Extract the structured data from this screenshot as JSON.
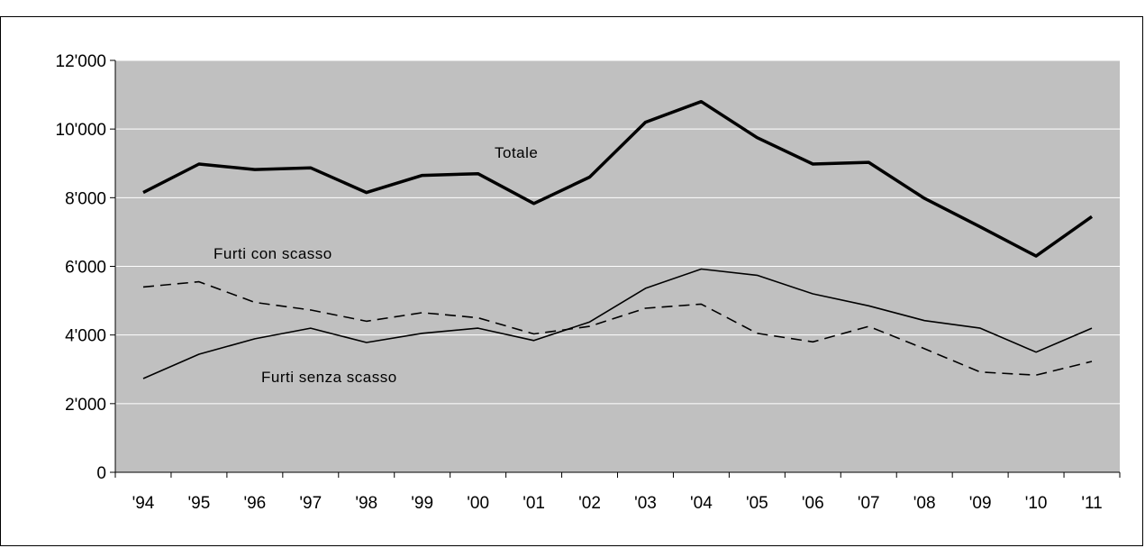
{
  "chart_data": {
    "type": "line",
    "title": "",
    "xlabel": "",
    "ylabel": "",
    "categories": [
      "'94",
      "'95",
      "'96",
      "'97",
      "'98",
      "'99",
      "'00",
      "'01",
      "'02",
      "'03",
      "'04",
      "'05",
      "'06",
      "'07",
      "'08",
      "'09",
      "'10",
      "'11"
    ],
    "ylim": [
      0,
      12000
    ],
    "yticks": [
      0,
      2000,
      4000,
      6000,
      8000,
      10000,
      12000
    ],
    "ytick_labels": [
      "0",
      "2'000",
      "4'000",
      "6'000",
      "8'000",
      "10'000",
      "12'000"
    ],
    "grid": true,
    "plot_background": "#c0c0c0",
    "series": [
      {
        "name": "Totale",
        "style": "thick-solid",
        "color": "#000000",
        "values": [
          8150,
          8980,
          8820,
          8870,
          8150,
          8650,
          8700,
          7830,
          8600,
          10200,
          10800,
          9750,
          8980,
          9030,
          7980,
          7150,
          6300,
          7450
        ]
      },
      {
        "name": "Furti con scasso",
        "style": "dashed",
        "color": "#000000",
        "values": [
          5400,
          5550,
          4950,
          4730,
          4400,
          4650,
          4500,
          4030,
          4250,
          4780,
          4900,
          4050,
          3800,
          4250,
          3600,
          2920,
          2830,
          3230
        ]
      },
      {
        "name": "Furti senza scasso",
        "style": "solid",
        "color": "#000000",
        "values": [
          2730,
          3440,
          3890,
          4200,
          3780,
          4050,
          4200,
          3840,
          4380,
          5360,
          5920,
          5740,
          5200,
          4850,
          4420,
          4200,
          3500,
          4200
        ]
      }
    ],
    "annotations": [
      {
        "text": "Totale",
        "series": "Totale"
      },
      {
        "text": "Furti con scasso",
        "series": "Furti con scasso"
      },
      {
        "text": "Furti senza scasso",
        "series": "Furti senza scasso"
      }
    ]
  }
}
